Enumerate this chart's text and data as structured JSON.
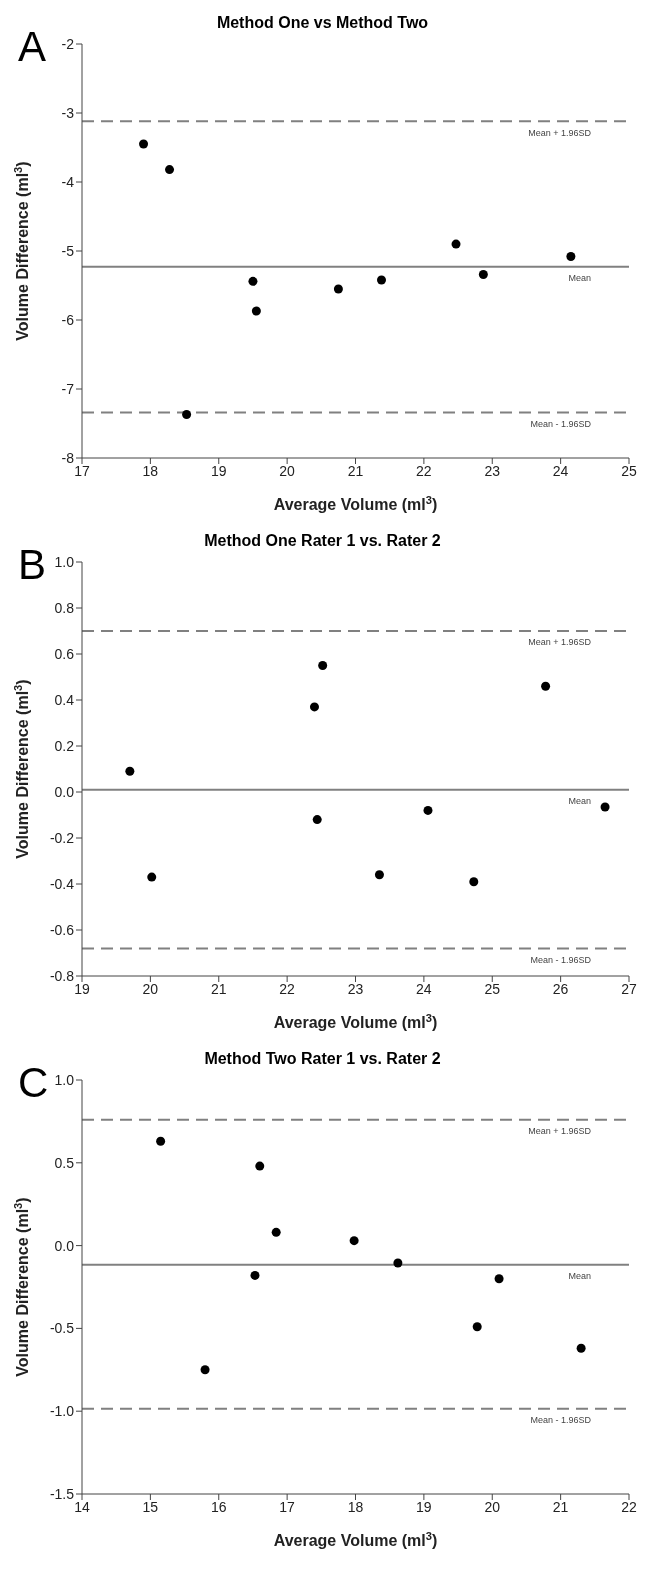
{
  "chart_data": [
    {
      "type": "scatter",
      "title": "Method One vs Method Two",
      "xlabel": "Average Volume (ml$^{3}$)",
      "ylabel": "Volume Difference (ml$^{3}$)",
      "annotations": [
        "A"
      ],
      "color": "#000000",
      "marker": "circle",
      "grid": false,
      "legend": false,
      "x": [
        17.9,
        18.28,
        18.53,
        19.5,
        19.55,
        20.75,
        21.38,
        22.47,
        22.87,
        24.15
      ],
      "values": [
        -3.45,
        -3.82,
        -7.37,
        -5.44,
        -5.87,
        -5.55,
        -5.42,
        -4.9,
        -5.34,
        -5.08
      ],
      "xlim": [
        17,
        25
      ],
      "xticks": [
        17,
        18,
        19,
        20,
        21,
        22,
        23,
        24,
        25
      ],
      "ylim": [
        -8,
        -2
      ],
      "yticks": [
        -8,
        -7,
        -6,
        -5,
        -4,
        -3,
        -2
      ],
      "ref_lines": [
        {
          "axis": "y",
          "value": -3.12,
          "label": "Mean + 1.96SD",
          "color": "#808080",
          "line_style": "dashed"
        },
        {
          "axis": "y",
          "value": -5.23,
          "label": "Mean",
          "color": "#808080",
          "line_style": "solid"
        },
        {
          "axis": "y",
          "value": -7.34,
          "label": "Mean - 1.96SD",
          "color": "#808080",
          "line_style": "dashed"
        }
      ]
    },
    {
      "type": "scatter",
      "title": "Method One Rater 1 vs. Rater 2",
      "xlabel": "Average Volume (ml$^{3}$)",
      "ylabel": "Volume Difference (ml$^{3}$)",
      "annotations": [
        "B"
      ],
      "color": "#000000",
      "marker": "circle",
      "grid": false,
      "legend": false,
      "x": [
        19.7,
        20.02,
        22.4,
        22.52,
        22.44,
        23.35,
        24.06,
        24.73,
        25.78,
        26.65
      ],
      "values": [
        0.09,
        -0.37,
        0.37,
        0.55,
        -0.12,
        -0.36,
        -0.08,
        -0.39,
        0.46,
        -0.065
      ],
      "xlim": [
        19,
        27
      ],
      "xticks": [
        19,
        20,
        21,
        22,
        23,
        24,
        25,
        26,
        27
      ],
      "ylim": [
        -0.8,
        1.0
      ],
      "yticks": [
        -0.8,
        -0.6,
        -0.4,
        -0.2,
        {
          "value": 0,
          "label": "0.0"
        },
        0.2,
        0.4,
        0.6,
        0.8,
        {
          "value": 1,
          "label": "1.0"
        }
      ],
      "ref_lines": [
        {
          "axis": "y",
          "value": 0.7,
          "label": "Mean + 1.96SD",
          "color": "#808080",
          "line_style": "dashed"
        },
        {
          "axis": "y",
          "value": 0.01,
          "label": "Mean",
          "color": "#808080",
          "line_style": "solid"
        },
        {
          "axis": "y",
          "value": -0.68,
          "label": "Mean - 1.96SD",
          "color": "#808080",
          "line_style": "dashed"
        }
      ]
    },
    {
      "type": "scatter",
      "title": "Method Two Rater 1 vs. Rater 2",
      "xlabel": "Average Volume (ml$^{3}$)",
      "ylabel": "Volume Difference (ml$^{3}$)",
      "annotations": [
        "C"
      ],
      "color": "#000000",
      "marker": "circle",
      "grid": false,
      "legend": false,
      "x": [
        15.15,
        15.8,
        16.53,
        16.6,
        16.84,
        17.98,
        18.62,
        19.78,
        20.1,
        21.3
      ],
      "values": [
        0.63,
        -0.75,
        -0.18,
        0.48,
        0.08,
        0.03,
        -0.105,
        -0.49,
        -0.2,
        -0.62
      ],
      "xlim": [
        14,
        22
      ],
      "xticks": [
        14,
        15,
        16,
        17,
        18,
        19,
        20,
        21,
        22
      ],
      "ylim": [
        -1.5,
        1.0
      ],
      "yticks": [
        -1.5,
        {
          "value": -1,
          "label": "-1.0"
        },
        -0.5,
        {
          "value": 0,
          "label": "0.0"
        },
        0.5,
        {
          "value": 1,
          "label": "1.0"
        }
      ],
      "ref_lines": [
        {
          "axis": "y",
          "value": 0.76,
          "label": "Mean + 1.96SD",
          "color": "#808080",
          "line_style": "dashed"
        },
        {
          "axis": "y",
          "value": -0.115,
          "label": "Mean",
          "color": "#808080",
          "line_style": "solid"
        },
        {
          "axis": "y",
          "value": -0.985,
          "label": "Mean - 1.96SD",
          "color": "#808080",
          "line_style": "dashed"
        }
      ]
    }
  ]
}
